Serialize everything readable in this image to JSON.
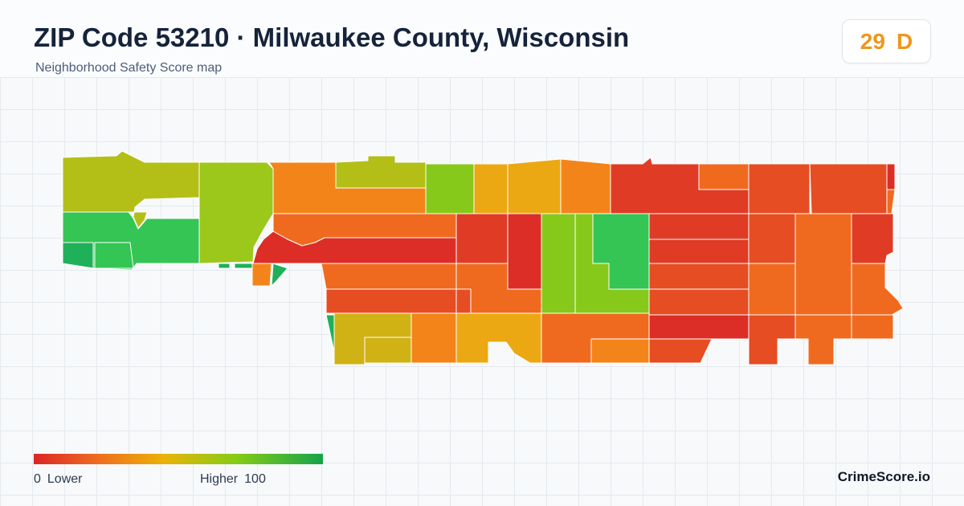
{
  "header": {
    "title": "ZIP Code 53210 · Milwaukee County, Wisconsin",
    "subtitle": "Neighborhood Safety Score map"
  },
  "score": {
    "value": "29",
    "grade": "D",
    "color": "#f0961c"
  },
  "legend": {
    "low_value": "0",
    "low_label": "Lower",
    "high_label": "Higher",
    "high_value": "100",
    "colors": [
      "#dc2626",
      "#ef6b1f",
      "#eab308",
      "#84cc16",
      "#16a34a"
    ]
  },
  "brand": "CrimeScore.io",
  "map": {
    "region_colors": {
      "dark-red": "#dc2e26",
      "red": "#e03b24",
      "red-orange": "#e64d22",
      "orange": "#ef6a1f",
      "deep-orange": "#f3841a",
      "amber": "#eca813",
      "yellow-olive": "#d0b215",
      "olive": "#b3bf16",
      "yellow-green": "#9bc81a",
      "lime": "#87c91b",
      "green": "#34c554",
      "dark-green": "#1fb05a"
    }
  }
}
